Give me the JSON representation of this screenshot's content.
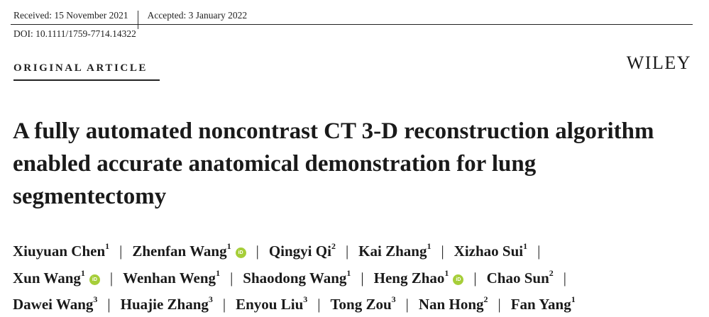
{
  "header": {
    "received": "Received: 15 November 2021",
    "accepted": "Accepted: 3 January 2022",
    "doi": "DOI: 10.1111/1759-7714.14322",
    "article_type": "ORIGINAL ARTICLE",
    "publisher": "WILEY"
  },
  "title_lines": [
    "A fully automated noncontrast CT 3-D reconstruction algorithm",
    "enabled accurate anatomical demonstration for lung",
    "segmentectomy"
  ],
  "orcid_label": "iD",
  "authors": [
    {
      "name": "Xiuyuan Chen",
      "aff": "1",
      "orcid": false
    },
    {
      "name": "Zhenfan Wang",
      "aff": "1",
      "orcid": true
    },
    {
      "name": "Qingyi Qi",
      "aff": "2",
      "orcid": false
    },
    {
      "name": "Kai Zhang",
      "aff": "1",
      "orcid": false
    },
    {
      "name": "Xizhao Sui",
      "aff": "1",
      "orcid": false
    },
    {
      "name": "Xun Wang",
      "aff": "1",
      "orcid": true
    },
    {
      "name": "Wenhan Weng",
      "aff": "1",
      "orcid": false
    },
    {
      "name": "Shaodong Wang",
      "aff": "1",
      "orcid": false
    },
    {
      "name": "Heng Zhao",
      "aff": "1",
      "orcid": true
    },
    {
      "name": "Chao Sun",
      "aff": "2",
      "orcid": false
    },
    {
      "name": "Dawei Wang",
      "aff": "3",
      "orcid": false
    },
    {
      "name": "Huajie Zhang",
      "aff": "3",
      "orcid": false
    },
    {
      "name": "Enyou Liu",
      "aff": "3",
      "orcid": false
    },
    {
      "name": "Tong Zou",
      "aff": "3",
      "orcid": false
    },
    {
      "name": "Nan Hong",
      "aff": "2",
      "orcid": false
    },
    {
      "name": "Fan Yang",
      "aff": "1",
      "orcid": false
    }
  ]
}
